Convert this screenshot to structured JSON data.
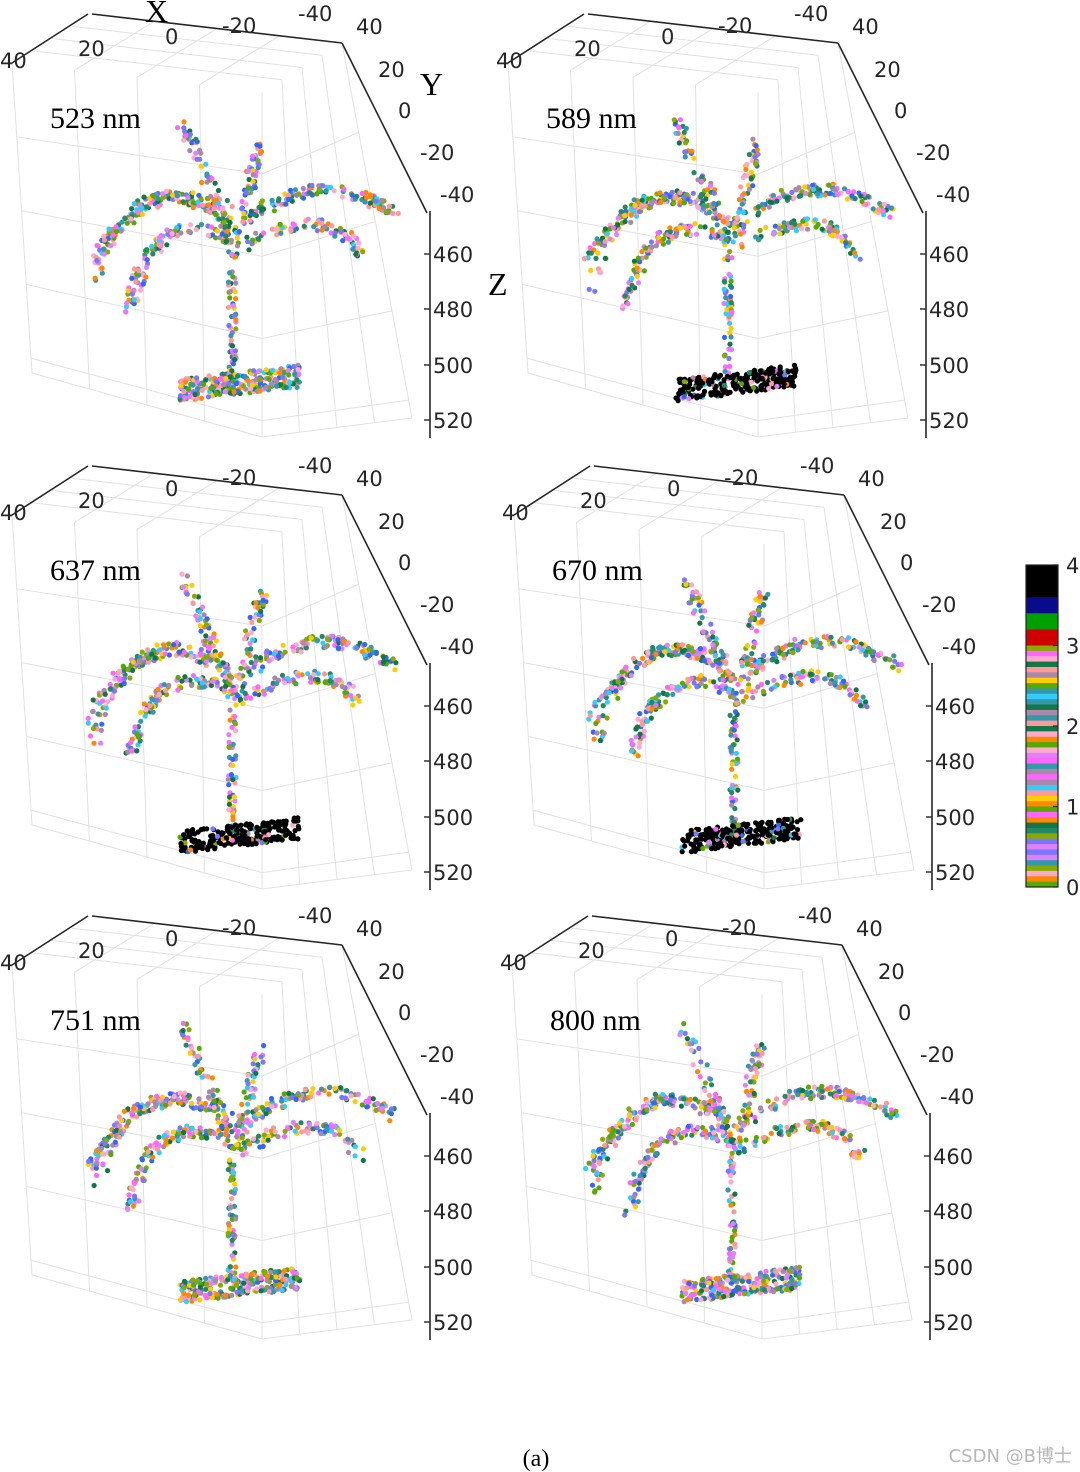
{
  "figure": {
    "caption": "(a)",
    "watermark": "CSDN @B博士"
  },
  "axis_names": {
    "x": "X",
    "y": "Y",
    "z": "Z"
  },
  "chart_data": [
    {
      "type": "scatter3d",
      "title": "523 nm",
      "xlabel": "X",
      "ylabel": "Y",
      "zlabel": "Z",
      "xticks": [
        "40",
        "20",
        "0",
        "-20",
        "-40"
      ],
      "yticks": [
        "40",
        "20",
        "0",
        "-20",
        "-40"
      ],
      "zticks": [
        "460",
        "480",
        "500",
        "520"
      ],
      "xlim": [
        -40,
        40
      ],
      "ylim": [
        -40,
        40
      ],
      "zlim": [
        445,
        525
      ],
      "pot_dominant_value": 3.7,
      "grid": true
    },
    {
      "type": "scatter3d",
      "title": "589 nm",
      "xticks": [
        "40",
        "20",
        "0",
        "-20",
        "-40"
      ],
      "yticks": [
        "40",
        "20",
        "0",
        "-20",
        "-40"
      ],
      "zticks": [
        "460",
        "480",
        "500",
        "520"
      ],
      "xlim": [
        -40,
        40
      ],
      "ylim": [
        -40,
        40
      ],
      "zlim": [
        445,
        525
      ],
      "pot_dominant_value": 4.0,
      "grid": true
    },
    {
      "type": "scatter3d",
      "title": "637 nm",
      "xticks": [
        "40",
        "20",
        "0",
        "-20",
        "-40"
      ],
      "yticks": [
        "40",
        "20",
        "0",
        "-20",
        "-40"
      ],
      "zticks": [
        "460",
        "480",
        "500",
        "520"
      ],
      "xlim": [
        -40,
        40
      ],
      "ylim": [
        -40,
        40
      ],
      "zlim": [
        445,
        525
      ],
      "pot_dominant_value": 4.0,
      "grid": true
    },
    {
      "type": "scatter3d",
      "title": "670 nm",
      "xticks": [
        "40",
        "20",
        "0",
        "-20",
        "-40"
      ],
      "yticks": [
        "40",
        "20",
        "0",
        "-20",
        "-40"
      ],
      "zticks": [
        "460",
        "480",
        "500",
        "520"
      ],
      "xlim": [
        -40,
        40
      ],
      "ylim": [
        -40,
        40
      ],
      "zlim": [
        445,
        525
      ],
      "pot_dominant_value": 4.0,
      "grid": true
    },
    {
      "type": "scatter3d",
      "title": "751 nm",
      "xticks": [
        "40",
        "20",
        "0",
        "-20",
        "-40"
      ],
      "yticks": [
        "40",
        "20",
        "0",
        "-20",
        "-40"
      ],
      "zticks": [
        "460",
        "480",
        "500",
        "520"
      ],
      "xlim": [
        -40,
        40
      ],
      "ylim": [
        -40,
        40
      ],
      "zlim": [
        445,
        525
      ],
      "pot_dominant_value": 2.6,
      "grid": true
    },
    {
      "type": "scatter3d",
      "title": "800 nm",
      "xticks": [
        "40",
        "20",
        "0",
        "-20",
        "-40"
      ],
      "yticks": [
        "40",
        "20",
        "0",
        "-20",
        "-40"
      ],
      "zticks": [
        "460",
        "480",
        "500",
        "520"
      ],
      "xlim": [
        -40,
        40
      ],
      "ylim": [
        -40,
        40
      ],
      "zlim": [
        445,
        525
      ],
      "pot_dominant_value": 2.9,
      "grid": true
    }
  ],
  "colorbar": {
    "ticks": [
      "4",
      "3",
      "2",
      "1",
      "0"
    ],
    "range": [
      0,
      4
    ],
    "colors": [
      "#000000",
      "#0a0a8c",
      "#00a000",
      "#d00000",
      "#ff66ff",
      "#e080ff",
      "#7777ff",
      "#3366ff",
      "#33ccff",
      "#ffaacc",
      "#aa88aa",
      "#3399aa",
      "#ff9999",
      "#228866",
      "#117744",
      "#ff8800",
      "#ffcc00",
      "#88aa00",
      "#55aa00"
    ]
  }
}
